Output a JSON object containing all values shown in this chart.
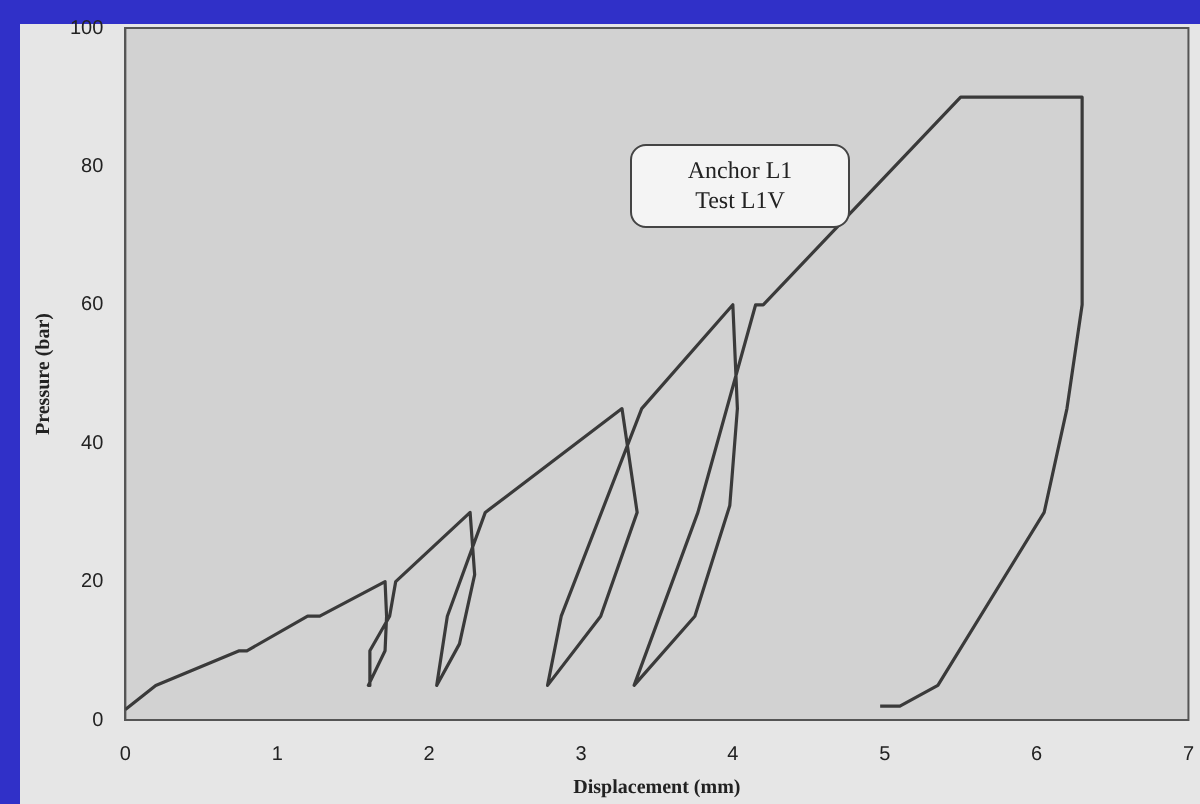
{
  "chart_data": {
    "type": "line",
    "xlabel": "Displacement (mm)",
    "ylabel": "Pressure (bar)",
    "annotations": [
      "Anchor  L1",
      "Test L1V"
    ],
    "xlim": [
      0,
      7
    ],
    "xticks": [
      0,
      1,
      2,
      3,
      4,
      5,
      6,
      7
    ],
    "ylim": [
      0,
      100
    ],
    "yticks": [
      0,
      20,
      40,
      60,
      80,
      100
    ],
    "grid": false,
    "legend": false,
    "marker": "none",
    "line_style": "solid",
    "series": [
      {
        "color": "#3a3a3a",
        "x": [
          0,
          0.2,
          0.75,
          0.8,
          1.2,
          1.28,
          1.71,
          1.72,
          1.71,
          1.6,
          1.61,
          1.74,
          1.78,
          2.27,
          2.3,
          2.2,
          2.05,
          2.12,
          2.37,
          3.27,
          3.37,
          3.13,
          2.78,
          2.87,
          3.4,
          4.0,
          4.03,
          3.98,
          3.75,
          3.35,
          3.77,
          4.15,
          4.2,
          5.5,
          6.3,
          6.3,
          6.2,
          6.05,
          5.35,
          5.1,
          4.97
        ],
        "values": [
          1.5,
          5,
          10,
          10,
          15,
          15,
          20,
          15,
          10,
          5,
          10,
          15,
          20,
          30,
          21,
          11,
          5,
          15,
          30,
          45,
          30,
          15,
          5,
          15,
          45,
          60,
          45,
          31,
          15,
          5,
          30,
          60,
          60,
          90,
          90,
          60,
          45,
          30,
          5,
          2,
          2
        ]
      }
    ]
  }
}
